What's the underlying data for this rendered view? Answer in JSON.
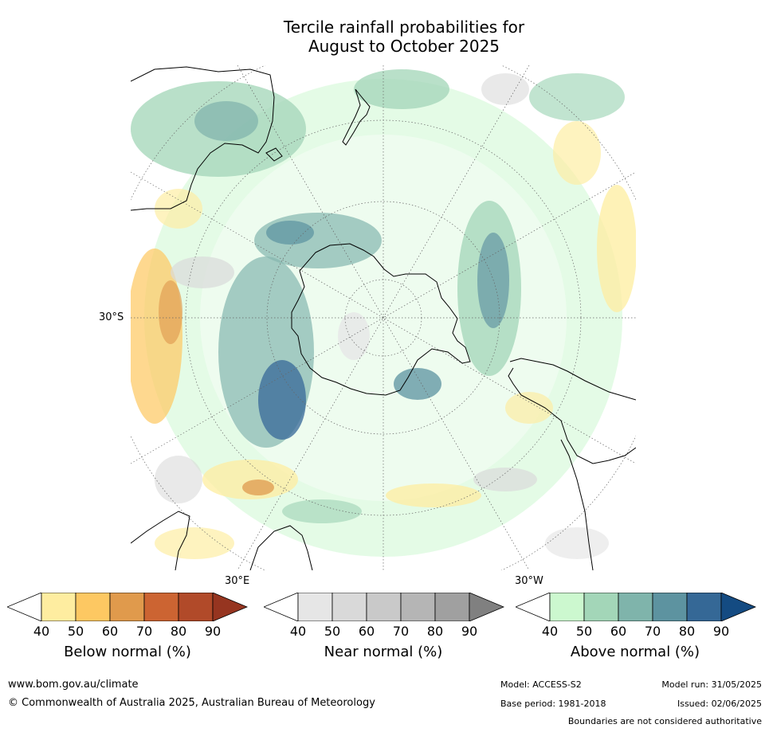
{
  "title_line1": "Tercile rainfall probabilities for",
  "title_line2": "August to October 2025",
  "map": {
    "lat_label": "30°S",
    "lon_label_east": "30°E",
    "lon_label_west": "30°W"
  },
  "colorbars": [
    {
      "title": "Below normal (%)",
      "ticks": [
        "40",
        "50",
        "60",
        "70",
        "80",
        "90"
      ],
      "colors": [
        "#ffffff",
        "#feeda0",
        "#fdc862",
        "#e09a4c",
        "#cc6432",
        "#b14a29",
        "#963520"
      ]
    },
    {
      "title": "Near normal (%)",
      "ticks": [
        "40",
        "50",
        "60",
        "70",
        "80",
        "90"
      ],
      "colors": [
        "#ffffff",
        "#e6e6e6",
        "#d9d9d9",
        "#c9c9c9",
        "#b5b5b5",
        "#a0a0a0",
        "#808080"
      ]
    },
    {
      "title": "Above normal (%)",
      "ticks": [
        "40",
        "50",
        "60",
        "70",
        "80",
        "90"
      ],
      "colors": [
        "#ffffff",
        "#ccf8cf",
        "#a3d6b8",
        "#7fb4ab",
        "#5d93a0",
        "#356896",
        "#144b82"
      ]
    }
  ],
  "footer": {
    "url": "www.bom.gov.au/climate",
    "copyright": "© Commonwealth of Australia 2025, Australian Bureau of Meteorology",
    "model": "Model: ACCESS-S2",
    "base_period": "Base period: 1981-2018",
    "model_run": "Model run: 31/05/2025",
    "issued": "Issued: 02/06/2025",
    "disclaimer": "Boundaries are not considered authoritative"
  }
}
